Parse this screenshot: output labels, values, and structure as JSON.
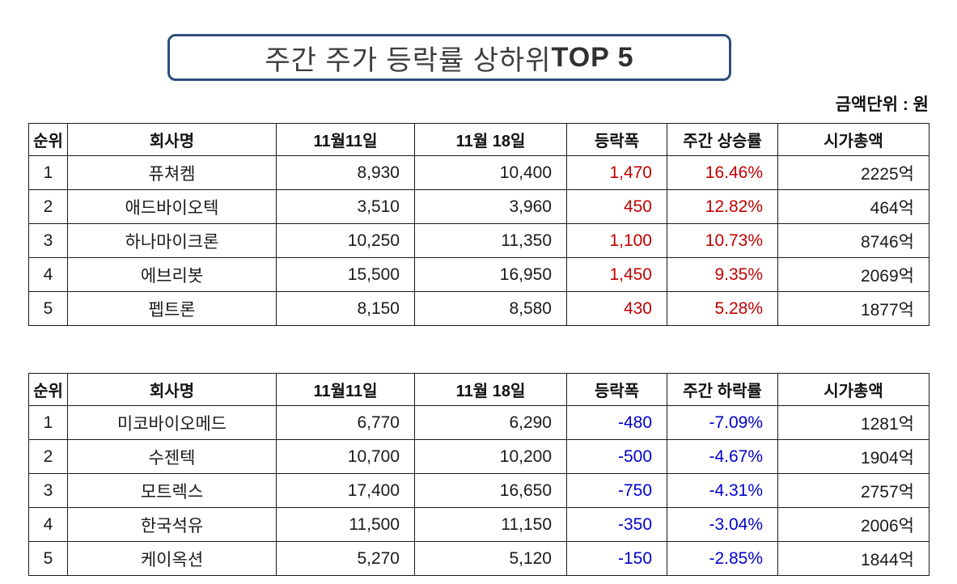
{
  "title": {
    "prefix": "주간 주가 등락률 상하위 ",
    "emphasis": "TOP 5"
  },
  "unit_note": "금액단위 : 원",
  "colors": {
    "gain": "#c00000",
    "loss": "#0000cc",
    "title_border": "#2e4d7e",
    "table_border": "#1a1a1a"
  },
  "chart_data": [
    {
      "type": "table",
      "columns": [
        "순위",
        "회사명",
        "11월11일",
        "11월 18일",
        "등락폭",
        "주간 상승률",
        "시가총액"
      ],
      "value_color": "gain",
      "rows": [
        [
          "1",
          "퓨쳐켐",
          "8,930",
          "10,400",
          "1,470",
          "16.46%",
          "2225억"
        ],
        [
          "2",
          "애드바이오텍",
          "3,510",
          "3,960",
          "450",
          "12.82%",
          "464억"
        ],
        [
          "3",
          "하나마이크론",
          "10,250",
          "11,350",
          "1,100",
          "10.73%",
          "8746억"
        ],
        [
          "4",
          "에브리봇",
          "15,500",
          "16,950",
          "1,450",
          "9.35%",
          "2069억"
        ],
        [
          "5",
          "펩트론",
          "8,150",
          "8,580",
          "430",
          "5.28%",
          "1877억"
        ]
      ]
    },
    {
      "type": "table",
      "columns": [
        "순위",
        "회사명",
        "11월11일",
        "11월 18일",
        "등락폭",
        "주간 하락률",
        "시가총액"
      ],
      "value_color": "loss",
      "rows": [
        [
          "1",
          "미코바이오메드",
          "6,770",
          "6,290",
          "-480",
          "-7.09%",
          "1281억"
        ],
        [
          "2",
          "수젠텍",
          "10,700",
          "10,200",
          "-500",
          "-4.67%",
          "1904억"
        ],
        [
          "3",
          "모트렉스",
          "17,400",
          "16,650",
          "-750",
          "-4.31%",
          "2757억"
        ],
        [
          "4",
          "한국석유",
          "11,500",
          "11,150",
          "-350",
          "-3.04%",
          "2006억"
        ],
        [
          "5",
          "케이옥션",
          "5,270",
          "5,120",
          "-150",
          "-2.85%",
          "1844억"
        ]
      ]
    }
  ]
}
